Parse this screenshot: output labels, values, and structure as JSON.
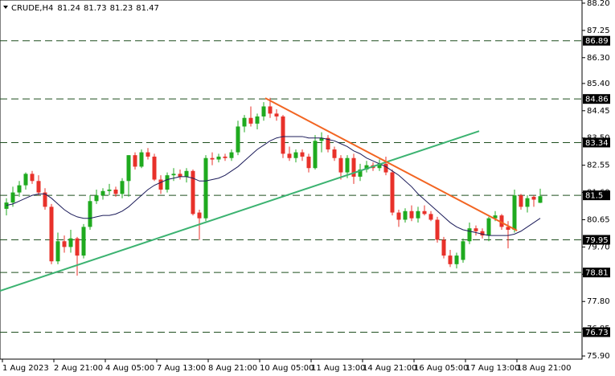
{
  "chart_data": {
    "type": "candlestick",
    "title": "CRUDE,H4",
    "up_color": "#1faa1f",
    "down_color": "#e8312a",
    "ylim": [
      75.79,
      88.31
    ],
    "yticks": [
      {
        "value": 88.2,
        "label": "88.20"
      },
      87.25,
      {
        "value": 86.3,
        "label": "86.30"
      },
      {
        "value": 85.4,
        "label": "85.40"
      },
      84.45,
      {
        "value": 83.5,
        "label": "83.50"
      },
      82.55,
      {
        "value": 81.6,
        "label": "81.60"
      },
      80.65,
      {
        "value": 79.7,
        "label": "79.70"
      },
      78.75,
      {
        "value": 77.8,
        "label": "77.80"
      },
      76.85,
      {
        "value": 75.9,
        "label": "75.90"
      }
    ],
    "xticks": [
      {
        "value": 0,
        "label": "1 Aug 2023"
      },
      {
        "value": 8,
        "label": "2 Aug 21:00"
      },
      {
        "value": 16,
        "label": "4 Aug 05:00"
      },
      {
        "value": 24,
        "label": "7 Aug 13:00"
      },
      {
        "value": 32,
        "label": "8 Aug 21:00"
      },
      {
        "value": 40,
        "label": "10 Aug 05:00"
      },
      {
        "value": 48,
        "label": "11 Aug 13:00"
      },
      {
        "value": 56,
        "label": "14 Aug 21:00"
      },
      {
        "value": 64,
        "label": "16 Aug 05:00"
      },
      {
        "value": 72,
        "label": "17 Aug 13:00"
      },
      {
        "value": 80,
        "label": "18 Aug 21:00"
      }
    ],
    "levels": [
      86.89,
      84.86,
      83.34,
      81.5,
      79.95,
      78.81,
      76.73
    ],
    "level_color": "#1f4f1f",
    "ohlc": [
      [
        81.03,
        81.4,
        80.8,
        81.25
      ],
      [
        81.25,
        81.8,
        81.1,
        81.6
      ],
      [
        81.6,
        82.0,
        81.45,
        81.85
      ],
      [
        81.85,
        82.3,
        81.7,
        82.25
      ],
      [
        82.25,
        82.35,
        81.9,
        82.0
      ],
      [
        82.0,
        82.2,
        81.5,
        81.6
      ],
      [
        81.6,
        81.75,
        81.0,
        81.1
      ],
      [
        81.1,
        81.2,
        79.1,
        79.2
      ],
      [
        79.2,
        80.2,
        79.1,
        79.9
      ],
      [
        79.9,
        80.1,
        79.5,
        79.7
      ],
      [
        79.7,
        80.3,
        79.5,
        80.0
      ],
      [
        80.0,
        80.05,
        78.7,
        79.4
      ],
      [
        79.4,
        80.5,
        79.3,
        80.4
      ],
      [
        80.4,
        81.5,
        80.3,
        81.3
      ],
      [
        81.3,
        81.7,
        81.2,
        81.5
      ],
      [
        81.5,
        81.75,
        81.35,
        81.65
      ],
      [
        81.65,
        81.9,
        81.5,
        81.7
      ],
      [
        81.7,
        81.8,
        81.45,
        81.55
      ],
      [
        81.55,
        82.1,
        81.4,
        82.0
      ],
      [
        82.0,
        82.9,
        81.45,
        82.9
      ],
      [
        82.9,
        83.0,
        82.4,
        82.5
      ],
      [
        82.5,
        83.1,
        82.45,
        83.0
      ],
      [
        83.0,
        83.15,
        82.75,
        82.85
      ],
      [
        82.85,
        82.95,
        82.0,
        82.05
      ],
      [
        82.05,
        82.2,
        81.55,
        81.7
      ],
      [
        81.7,
        82.3,
        81.6,
        82.2
      ],
      [
        82.2,
        82.45,
        82.0,
        82.25
      ],
      [
        82.25,
        82.4,
        82.05,
        82.15
      ],
      [
        82.15,
        82.45,
        81.95,
        82.35
      ],
      [
        82.35,
        82.4,
        80.8,
        80.85
      ],
      [
        80.9,
        81.0,
        79.95,
        80.7
      ],
      [
        80.7,
        82.9,
        80.6,
        82.8
      ],
      [
        82.8,
        83.0,
        82.55,
        82.75
      ],
      [
        82.75,
        82.95,
        82.65,
        82.85
      ],
      [
        82.85,
        82.95,
        82.7,
        82.8
      ],
      [
        82.8,
        83.1,
        82.7,
        83.0
      ],
      [
        83.0,
        84.1,
        82.9,
        83.9
      ],
      [
        83.9,
        84.3,
        83.7,
        84.2
      ],
      [
        84.2,
        84.6,
        83.9,
        84.0
      ],
      [
        84.0,
        84.35,
        83.8,
        84.25
      ],
      [
        84.25,
        84.75,
        84.1,
        84.6
      ],
      [
        84.6,
        84.9,
        84.2,
        84.35
      ],
      [
        84.35,
        84.5,
        84.1,
        84.25
      ],
      [
        84.25,
        84.3,
        82.8,
        82.95
      ],
      [
        82.95,
        83.2,
        82.7,
        82.8
      ],
      [
        82.8,
        83.1,
        82.65,
        83.0
      ],
      [
        83.0,
        83.1,
        82.7,
        82.85
      ],
      [
        82.85,
        82.95,
        82.3,
        82.45
      ],
      [
        82.45,
        83.6,
        82.4,
        83.4
      ],
      [
        83.4,
        83.7,
        83.0,
        83.5
      ],
      [
        83.5,
        83.6,
        83.0,
        83.1
      ],
      [
        83.1,
        83.2,
        82.7,
        82.8
      ],
      [
        82.8,
        82.9,
        82.05,
        82.3
      ],
      [
        82.3,
        82.9,
        82.1,
        82.8
      ],
      [
        82.8,
        82.95,
        81.9,
        82.15
      ],
      [
        82.15,
        82.6,
        82.0,
        82.4
      ],
      [
        82.4,
        82.7,
        82.3,
        82.55
      ],
      [
        82.55,
        82.65,
        82.35,
        82.45
      ],
      [
        82.45,
        82.75,
        82.35,
        82.6
      ],
      [
        82.6,
        82.85,
        82.2,
        82.3
      ],
      [
        82.3,
        82.4,
        80.8,
        80.9
      ],
      [
        80.9,
        81.0,
        80.4,
        80.65
      ],
      [
        80.65,
        81.05,
        80.55,
        80.95
      ],
      [
        80.95,
        81.15,
        80.6,
        80.7
      ],
      [
        80.7,
        81.1,
        80.55,
        80.95
      ],
      [
        80.95,
        81.15,
        80.8,
        80.85
      ],
      [
        80.85,
        80.95,
        80.6,
        80.65
      ],
      [
        80.65,
        80.75,
        79.85,
        79.95
      ],
      [
        79.95,
        80.05,
        79.3,
        79.4
      ],
      [
        79.4,
        79.6,
        79.0,
        79.1
      ],
      [
        79.1,
        79.5,
        78.95,
        79.4
      ],
      [
        79.25,
        80.0,
        79.15,
        79.9
      ],
      [
        79.9,
        80.55,
        79.8,
        80.35
      ],
      [
        80.35,
        80.45,
        80.1,
        80.25
      ],
      [
        80.25,
        80.35,
        80.0,
        80.1
      ],
      [
        80.1,
        80.75,
        79.9,
        80.7
      ],
      [
        80.7,
        80.95,
        80.6,
        80.8
      ],
      [
        80.8,
        80.85,
        80.3,
        80.4
      ],
      [
        80.4,
        80.6,
        79.65,
        80.3
      ],
      [
        80.3,
        81.7,
        80.2,
        81.5
      ],
      [
        81.5,
        81.55,
        81.0,
        81.1
      ],
      [
        81.1,
        81.5,
        80.9,
        81.4
      ],
      [
        81.45,
        81.5,
        81.1,
        81.35
      ],
      [
        81.24,
        81.73,
        81.23,
        81.47
      ]
    ],
    "ma": {
      "color": "#1c1c5a",
      "values": [
        81.15,
        81.2,
        81.3,
        81.4,
        81.5,
        81.55,
        81.55,
        81.4,
        81.2,
        81.0,
        80.85,
        80.75,
        80.7,
        80.7,
        80.75,
        80.8,
        80.8,
        80.85,
        80.95,
        81.1,
        81.3,
        81.5,
        81.7,
        81.85,
        81.95,
        82.05,
        82.1,
        82.15,
        82.15,
        82.1,
        82.0,
        82.0,
        82.05,
        82.1,
        82.2,
        82.35,
        82.5,
        82.7,
        82.9,
        83.1,
        83.25,
        83.4,
        83.5,
        83.55,
        83.55,
        83.55,
        83.55,
        83.5,
        83.5,
        83.5,
        83.45,
        83.4,
        83.3,
        83.2,
        83.05,
        82.95,
        82.8,
        82.7,
        82.6,
        82.5,
        82.35,
        82.2,
        82.0,
        81.8,
        81.55,
        81.35,
        81.15,
        80.95,
        80.75,
        80.55,
        80.4,
        80.3,
        80.25,
        80.2,
        80.15,
        80.1,
        80.1,
        80.1,
        80.1,
        80.15,
        80.25,
        80.4,
        80.55,
        80.7
      ]
    },
    "trendlines": [
      {
        "color": "#3cb371",
        "x": [
          -1,
          73.5
        ],
        "values": [
          78.17,
          83.74
        ]
      },
      {
        "color": "#f26522",
        "x": [
          40.25,
          79.4
        ],
        "values": [
          84.89,
          80.27
        ]
      }
    ]
  }
}
